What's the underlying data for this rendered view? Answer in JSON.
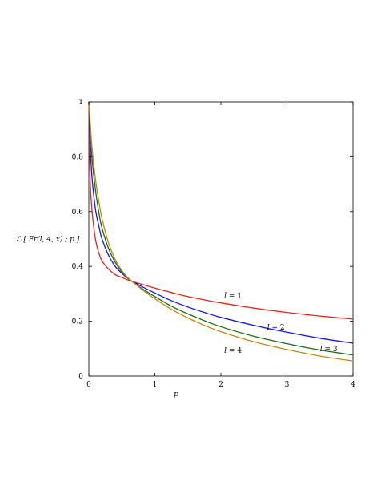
{
  "chart_data": {
    "type": "line",
    "title": "",
    "xlabel": "p",
    "ylabel": "ℒ [ Fr(l, 4, x) ; p ]",
    "xlim": [
      0,
      4
    ],
    "ylim": [
      0,
      1
    ],
    "xticks": [
      "0",
      "1",
      "2",
      "3",
      "4"
    ],
    "yticks": [
      "0",
      "0.2",
      "0.4",
      "0.6",
      "0.8",
      "1"
    ],
    "grid": false,
    "legend": "none",
    "series": [
      {
        "name": "l = 1",
        "color": "#e8231e",
        "x": [
          0,
          0.02,
          0.05,
          0.1,
          0.15,
          0.2,
          0.3,
          0.4,
          0.5,
          0.6,
          0.7,
          0.8,
          1.0,
          1.25,
          1.5,
          1.75,
          2.0,
          2.5,
          3.0,
          3.5,
          4.0
        ],
        "y": [
          1.0,
          0.72,
          0.6,
          0.5,
          0.45,
          0.42,
          0.39,
          0.37,
          0.36,
          0.35,
          0.342,
          0.335,
          0.321,
          0.305,
          0.29,
          0.278,
          0.267,
          0.248,
          0.232,
          0.219,
          0.208
        ]
      },
      {
        "name": "l = 2",
        "color": "#1414e6",
        "x": [
          0,
          0.02,
          0.05,
          0.1,
          0.15,
          0.2,
          0.3,
          0.4,
          0.5,
          0.6,
          0.7,
          0.8,
          1.0,
          1.25,
          1.5,
          1.75,
          2.0,
          2.5,
          3.0,
          3.5,
          4.0
        ],
        "y": [
          1.0,
          0.84,
          0.72,
          0.61,
          0.55,
          0.5,
          0.44,
          0.4,
          0.375,
          0.355,
          0.34,
          0.327,
          0.303,
          0.275,
          0.252,
          0.232,
          0.214,
          0.185,
          0.16,
          0.138,
          0.12
        ]
      },
      {
        "name": "l = 3",
        "color": "#1a6b12",
        "x": [
          0,
          0.02,
          0.05,
          0.1,
          0.15,
          0.2,
          0.3,
          0.4,
          0.5,
          0.6,
          0.7,
          0.8,
          1.0,
          1.25,
          1.5,
          1.75,
          2.0,
          2.5,
          3.0,
          3.5,
          4.0
        ],
        "y": [
          1.0,
          0.9,
          0.79,
          0.68,
          0.6,
          0.54,
          0.465,
          0.415,
          0.38,
          0.355,
          0.337,
          0.32,
          0.29,
          0.255,
          0.227,
          0.202,
          0.18,
          0.145,
          0.118,
          0.095,
          0.077
        ]
      },
      {
        "name": "l = 4",
        "color": "#c08a12",
        "x": [
          0,
          0.02,
          0.05,
          0.1,
          0.15,
          0.2,
          0.3,
          0.4,
          0.5,
          0.6,
          0.7,
          0.8,
          1.0,
          1.25,
          1.5,
          1.75,
          2.0,
          2.5,
          3.0,
          3.5,
          4.0
        ],
        "y": [
          1.0,
          0.93,
          0.83,
          0.72,
          0.64,
          0.575,
          0.485,
          0.425,
          0.385,
          0.357,
          0.337,
          0.317,
          0.282,
          0.244,
          0.212,
          0.185,
          0.162,
          0.125,
          0.097,
          0.073,
          0.055
        ]
      }
    ],
    "annotations": [
      {
        "series": "l = 1",
        "var": "l",
        "eq": " = 1",
        "x": 2.05,
        "y": 0.285
      },
      {
        "series": "l = 2",
        "var": "l",
        "eq": " = 2",
        "x": 2.7,
        "y": 0.17
      },
      {
        "series": "l = 3",
        "var": "l",
        "eq": " = 3",
        "x": 3.5,
        "y": 0.09
      },
      {
        "series": "l = 4",
        "var": "l",
        "eq": " = 4",
        "x": 2.05,
        "y": 0.085
      }
    ]
  }
}
